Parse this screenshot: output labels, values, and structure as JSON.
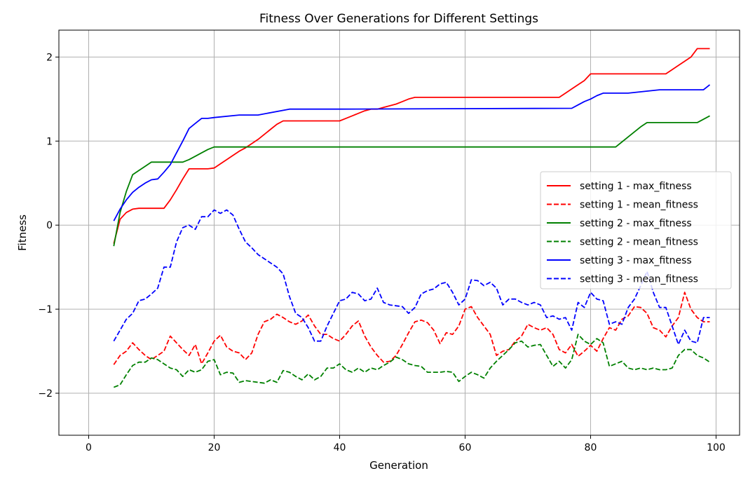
{
  "chart_data": {
    "type": "line",
    "title": "Fitness Over Generations for Different Settings",
    "xlabel": "Generation",
    "ylabel": "Fitness",
    "xlim": [
      -4.75,
      103.75
    ],
    "ylim": [
      -2.5,
      2.32
    ],
    "xticks": [
      0,
      20,
      40,
      60,
      80,
      100
    ],
    "yticks": [
      -2,
      -1,
      0,
      1,
      2
    ],
    "xtick_labels": [
      "0",
      "20",
      "40",
      "60",
      "80",
      "100"
    ],
    "ytick_labels": [
      "−2",
      "−1",
      "0",
      "1",
      "2"
    ],
    "grid": true,
    "legend_position": "center-right",
    "series": [
      {
        "name": "setting 1 - max_fitness",
        "color": "#ff0000",
        "style": "solid",
        "x": [
          4,
          5,
          6,
          7,
          8,
          9,
          10,
          11,
          12,
          13,
          14,
          15,
          16,
          17,
          18,
          19,
          20,
          21,
          22,
          23,
          24,
          25,
          26,
          27,
          28,
          29,
          30,
          31,
          40,
          41,
          42,
          43,
          44,
          45,
          46,
          47,
          48,
          49,
          50,
          51,
          52,
          75,
          76,
          77,
          78,
          79,
          80,
          92,
          93,
          94,
          95,
          96,
          97,
          99
        ],
        "y": [
          -0.22,
          0.07,
          0.15,
          0.19,
          0.2,
          0.2,
          0.2,
          0.2,
          0.2,
          0.3,
          0.42,
          0.55,
          0.67,
          0.67,
          0.67,
          0.67,
          0.68,
          0.73,
          0.78,
          0.83,
          0.88,
          0.92,
          0.97,
          1.02,
          1.08,
          1.14,
          1.2,
          1.24,
          1.24,
          1.27,
          1.3,
          1.33,
          1.36,
          1.38,
          1.38,
          1.4,
          1.42,
          1.44,
          1.47,
          1.5,
          1.52,
          1.52,
          1.57,
          1.62,
          1.67,
          1.72,
          1.8,
          1.8,
          1.85,
          1.9,
          1.95,
          2.0,
          2.1,
          2.1
        ]
      },
      {
        "name": "setting 1 - mean_fitness",
        "color": "#ff0000",
        "style": "dashed",
        "x": [
          4,
          5,
          6,
          7,
          8,
          9,
          10,
          11,
          12,
          13,
          14,
          15,
          16,
          17,
          18,
          19,
          20,
          21,
          22,
          23,
          24,
          25,
          26,
          27,
          28,
          29,
          30,
          31,
          32,
          33,
          34,
          35,
          36,
          37,
          38,
          39,
          40,
          41,
          42,
          43,
          44,
          45,
          46,
          47,
          48,
          49,
          50,
          51,
          52,
          53,
          54,
          55,
          56,
          57,
          58,
          59,
          60,
          61,
          62,
          63,
          64,
          65,
          66,
          67,
          68,
          69,
          70,
          71,
          72,
          73,
          74,
          75,
          76,
          77,
          78,
          79,
          80,
          81,
          82,
          83,
          84,
          85,
          86,
          87,
          88,
          89,
          90,
          91,
          92,
          93,
          94,
          95,
          96,
          97,
          98,
          99
        ],
        "y": [
          -1.66,
          -1.55,
          -1.5,
          -1.4,
          -1.48,
          -1.55,
          -1.6,
          -1.55,
          -1.5,
          -1.32,
          -1.4,
          -1.48,
          -1.55,
          -1.42,
          -1.65,
          -1.52,
          -1.38,
          -1.31,
          -1.45,
          -1.5,
          -1.52,
          -1.6,
          -1.52,
          -1.3,
          -1.15,
          -1.12,
          -1.06,
          -1.1,
          -1.15,
          -1.18,
          -1.14,
          -1.07,
          -1.2,
          -1.3,
          -1.3,
          -1.35,
          -1.38,
          -1.3,
          -1.2,
          -1.14,
          -1.32,
          -1.45,
          -1.55,
          -1.63,
          -1.62,
          -1.55,
          -1.42,
          -1.28,
          -1.15,
          -1.13,
          -1.16,
          -1.25,
          -1.41,
          -1.28,
          -1.3,
          -1.2,
          -1.0,
          -0.97,
          -1.1,
          -1.2,
          -1.3,
          -1.55,
          -1.5,
          -1.48,
          -1.38,
          -1.32,
          -1.18,
          -1.22,
          -1.25,
          -1.22,
          -1.3,
          -1.48,
          -1.52,
          -1.42,
          -1.56,
          -1.5,
          -1.43,
          -1.5,
          -1.35,
          -1.22,
          -1.25,
          -1.12,
          -1.08,
          -0.97,
          -0.98,
          -1.05,
          -1.22,
          -1.25,
          -1.33,
          -1.2,
          -1.1,
          -0.8,
          -1.0,
          -1.1,
          -1.15,
          -1.15
        ]
      },
      {
        "name": "setting 2 - max_fitness",
        "color": "#008000",
        "style": "solid",
        "x": [
          4,
          5,
          6,
          7,
          8,
          9,
          10,
          11,
          12,
          13,
          14,
          15,
          16,
          17,
          18,
          19,
          20,
          84,
          85,
          86,
          87,
          88,
          89,
          97,
          99
        ],
        "y": [
          -0.25,
          0.15,
          0.4,
          0.6,
          0.65,
          0.7,
          0.75,
          0.75,
          0.75,
          0.75,
          0.75,
          0.75,
          0.78,
          0.82,
          0.86,
          0.9,
          0.93,
          0.93,
          0.99,
          1.05,
          1.11,
          1.17,
          1.22,
          1.22,
          1.3
        ]
      },
      {
        "name": "setting 2 - mean_fitness",
        "color": "#008000",
        "style": "dashed",
        "x": [
          4,
          5,
          6,
          7,
          8,
          9,
          10,
          11,
          12,
          13,
          14,
          15,
          16,
          17,
          18,
          19,
          20,
          21,
          22,
          23,
          24,
          25,
          26,
          27,
          28,
          29,
          30,
          31,
          32,
          33,
          34,
          35,
          36,
          37,
          38,
          39,
          40,
          41,
          42,
          43,
          44,
          45,
          46,
          47,
          48,
          49,
          50,
          51,
          52,
          53,
          54,
          55,
          56,
          57,
          58,
          59,
          60,
          61,
          62,
          63,
          64,
          65,
          66,
          67,
          68,
          69,
          70,
          71,
          72,
          73,
          74,
          75,
          76,
          77,
          78,
          79,
          80,
          81,
          82,
          83,
          84,
          85,
          86,
          87,
          88,
          89,
          90,
          91,
          92,
          93,
          94,
          95,
          96,
          97,
          98,
          99
        ],
        "y": [
          -1.93,
          -1.9,
          -1.78,
          -1.67,
          -1.63,
          -1.63,
          -1.58,
          -1.6,
          -1.65,
          -1.7,
          -1.72,
          -1.8,
          -1.72,
          -1.75,
          -1.72,
          -1.62,
          -1.6,
          -1.78,
          -1.75,
          -1.76,
          -1.87,
          -1.85,
          -1.86,
          -1.87,
          -1.88,
          -1.84,
          -1.87,
          -1.73,
          -1.75,
          -1.8,
          -1.84,
          -1.77,
          -1.84,
          -1.8,
          -1.7,
          -1.7,
          -1.65,
          -1.72,
          -1.75,
          -1.7,
          -1.75,
          -1.7,
          -1.72,
          -1.67,
          -1.63,
          -1.57,
          -1.6,
          -1.65,
          -1.67,
          -1.68,
          -1.75,
          -1.75,
          -1.75,
          -1.74,
          -1.75,
          -1.86,
          -1.8,
          -1.75,
          -1.78,
          -1.82,
          -1.7,
          -1.62,
          -1.55,
          -1.48,
          -1.4,
          -1.38,
          -1.45,
          -1.43,
          -1.42,
          -1.55,
          -1.68,
          -1.62,
          -1.7,
          -1.6,
          -1.3,
          -1.38,
          -1.42,
          -1.35,
          -1.4,
          -1.68,
          -1.65,
          -1.62,
          -1.7,
          -1.72,
          -1.7,
          -1.72,
          -1.7,
          -1.72,
          -1.72,
          -1.7,
          -1.55,
          -1.48,
          -1.48,
          -1.55,
          -1.58,
          -1.63
        ]
      },
      {
        "name": "setting 3 - max_fitness",
        "color": "#0000ff",
        "style": "solid",
        "x": [
          4,
          5,
          6,
          7,
          8,
          9,
          10,
          11,
          12,
          13,
          14,
          15,
          16,
          17,
          18,
          19,
          20,
          24,
          27,
          32,
          40,
          77,
          78,
          79,
          80,
          81,
          82,
          86,
          91,
          98,
          99
        ],
        "y": [
          0.05,
          0.19,
          0.3,
          0.39,
          0.45,
          0.5,
          0.54,
          0.55,
          0.63,
          0.72,
          0.86,
          1.0,
          1.15,
          1.21,
          1.27,
          1.27,
          1.28,
          1.31,
          1.31,
          1.38,
          1.38,
          1.39,
          1.43,
          1.47,
          1.5,
          1.54,
          1.57,
          1.57,
          1.61,
          1.61,
          1.67
        ]
      },
      {
        "name": "setting 3 - mean_fitness",
        "color": "#0000ff",
        "style": "dashed",
        "x": [
          4,
          5,
          6,
          7,
          8,
          9,
          10,
          11,
          12,
          13,
          14,
          15,
          16,
          17,
          18,
          19,
          20,
          21,
          22,
          23,
          24,
          25,
          26,
          27,
          28,
          29,
          30,
          31,
          32,
          33,
          34,
          35,
          36,
          37,
          38,
          39,
          40,
          41,
          42,
          43,
          44,
          45,
          46,
          47,
          48,
          49,
          50,
          51,
          52,
          53,
          54,
          55,
          56,
          57,
          58,
          59,
          60,
          61,
          62,
          63,
          64,
          65,
          66,
          67,
          68,
          69,
          70,
          71,
          72,
          73,
          74,
          75,
          76,
          77,
          78,
          79,
          80,
          81,
          82,
          83,
          84,
          85,
          86,
          87,
          88,
          89,
          90,
          91,
          92,
          93,
          94,
          95,
          96,
          97,
          98,
          99
        ],
        "y": [
          -1.38,
          -1.25,
          -1.12,
          -1.05,
          -0.9,
          -0.88,
          -0.82,
          -0.75,
          -0.5,
          -0.5,
          -0.2,
          -0.03,
          0.0,
          -0.05,
          0.1,
          0.1,
          0.18,
          0.14,
          0.18,
          0.12,
          -0.05,
          -0.2,
          -0.27,
          -0.35,
          -0.4,
          -0.45,
          -0.5,
          -0.58,
          -0.85,
          -1.05,
          -1.1,
          -1.22,
          -1.38,
          -1.38,
          -1.2,
          -1.05,
          -0.9,
          -0.88,
          -0.8,
          -0.82,
          -0.9,
          -0.88,
          -0.75,
          -0.92,
          -0.95,
          -0.96,
          -0.97,
          -1.05,
          -0.98,
          -0.82,
          -0.78,
          -0.76,
          -0.7,
          -0.68,
          -0.8,
          -0.95,
          -0.88,
          -0.65,
          -0.66,
          -0.72,
          -0.68,
          -0.75,
          -0.95,
          -0.88,
          -0.88,
          -0.92,
          -0.95,
          -0.92,
          -0.95,
          -1.1,
          -1.08,
          -1.12,
          -1.1,
          -1.25,
          -0.92,
          -0.98,
          -0.8,
          -0.88,
          -0.9,
          -1.18,
          -1.15,
          -1.18,
          -0.98,
          -0.88,
          -0.72,
          -0.55,
          -0.8,
          -0.98,
          -0.98,
          -1.2,
          -1.42,
          -1.25,
          -1.38,
          -1.4,
          -1.1,
          -1.1
        ]
      }
    ]
  }
}
